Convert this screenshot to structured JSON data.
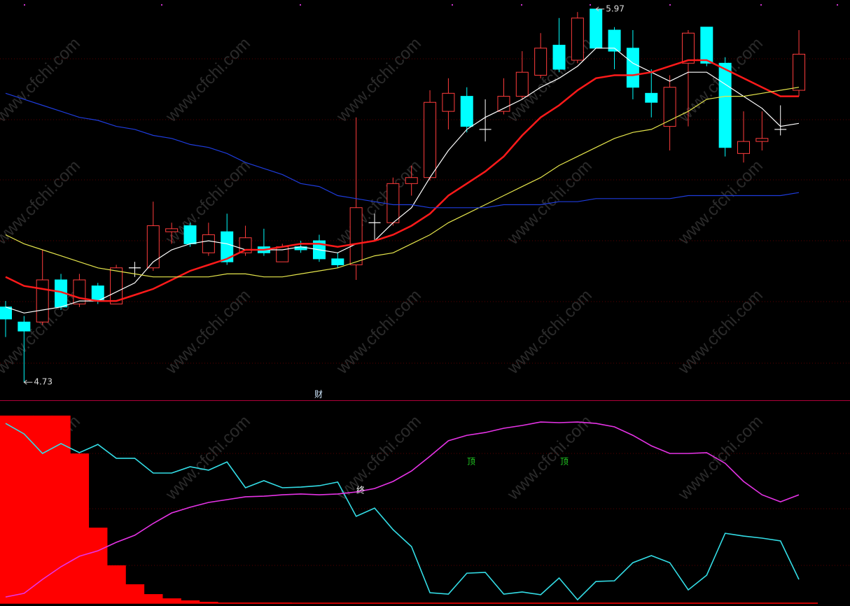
{
  "watermark": "www.cfchi.com",
  "chart_data": [
    {
      "type": "candlestick",
      "open": [
        4.98,
        4.93,
        4.93,
        5.07,
        4.99,
        5.05,
        4.99,
        5.11,
        5.11,
        5.23,
        5.25,
        5.16,
        5.23,
        5.16,
        5.18,
        5.13,
        5.18,
        5.2,
        5.14,
        5.12,
        5.26,
        5.26,
        5.39,
        5.41,
        5.63,
        5.68,
        5.57,
        5.63,
        5.68,
        5.75,
        5.85,
        5.8,
        5.97,
        5.9,
        5.84,
        5.69,
        5.58,
        5.79,
        5.91,
        5.79,
        5.49,
        5.53,
        5.57,
        5.7
      ],
      "high": [
        5.0,
        4.95,
        5.17,
        5.09,
        5.09,
        5.06,
        5.12,
        5.13,
        5.33,
        5.26,
        5.26,
        5.26,
        5.29,
        5.25,
        5.24,
        5.19,
        5.2,
        5.22,
        5.16,
        5.61,
        5.29,
        5.41,
        5.45,
        5.7,
        5.74,
        5.71,
        5.67,
        5.74,
        5.83,
        5.89,
        5.94,
        5.96,
        5.97,
        5.91,
        5.9,
        5.77,
        5.75,
        5.9,
        5.91,
        5.81,
        5.63,
        5.63,
        5.65,
        5.9
      ],
      "low": [
        4.88,
        4.73,
        4.92,
        4.97,
        4.98,
        4.99,
        4.99,
        5.08,
        5.1,
        5.19,
        5.18,
        5.15,
        5.12,
        5.15,
        5.15,
        5.13,
        5.16,
        5.13,
        5.11,
        5.07,
        5.2,
        5.25,
        5.35,
        5.4,
        5.57,
        5.56,
        5.53,
        5.62,
        5.67,
        5.74,
        5.76,
        5.79,
        5.84,
        5.77,
        5.67,
        5.61,
        5.5,
        5.58,
        5.78,
        5.48,
        5.46,
        5.5,
        5.55,
        5.68
      ],
      "close": [
        4.94,
        4.9,
        5.07,
        4.98,
        5.07,
        5.0,
        5.11,
        5.11,
        5.25,
        5.24,
        5.19,
        5.22,
        5.13,
        5.21,
        5.16,
        5.18,
        5.17,
        5.14,
        5.12,
        5.31,
        5.26,
        5.39,
        5.41,
        5.66,
        5.69,
        5.58,
        5.57,
        5.68,
        5.76,
        5.84,
        5.77,
        5.94,
        5.84,
        5.83,
        5.71,
        5.66,
        5.71,
        5.89,
        5.79,
        5.51,
        5.53,
        5.54,
        5.57,
        5.82
      ],
      "up_color": "#ff3c3c",
      "down_color": "#00ffff",
      "flat_color": "#ffffff",
      "series": [
        {
          "color": "#ffffff",
          "values": [
            4.98,
            4.96,
            4.97,
            4.98,
            5.0,
            5.0,
            5.03,
            5.06,
            5.13,
            5.17,
            5.19,
            5.2,
            5.19,
            5.17,
            5.17,
            5.17,
            5.18,
            5.17,
            5.16,
            5.19,
            5.2,
            5.26,
            5.31,
            5.41,
            5.5,
            5.57,
            5.61,
            5.64,
            5.67,
            5.71,
            5.74,
            5.78,
            5.84,
            5.84,
            5.79,
            5.76,
            5.73,
            5.76,
            5.76,
            5.72,
            5.68,
            5.64,
            5.58,
            5.59
          ]
        },
        {
          "color": "#ff1a1a",
          "values": [
            5.08,
            5.05,
            5.04,
            5.03,
            5.01,
            5.0,
            5.0,
            5.02,
            5.04,
            5.07,
            5.1,
            5.12,
            5.14,
            5.17,
            5.17,
            5.18,
            5.19,
            5.19,
            5.18,
            5.19,
            5.2,
            5.22,
            5.25,
            5.29,
            5.35,
            5.39,
            5.43,
            5.48,
            5.55,
            5.61,
            5.65,
            5.7,
            5.74,
            5.75,
            5.75,
            5.76,
            5.78,
            5.8,
            5.8,
            5.77,
            5.74,
            5.71,
            5.68,
            5.68
          ]
        },
        {
          "color": "#e6e64c",
          "values": [
            5.22,
            5.19,
            5.17,
            5.15,
            5.13,
            5.11,
            5.1,
            5.09,
            5.08,
            5.08,
            5.08,
            5.08,
            5.09,
            5.09,
            5.08,
            5.08,
            5.09,
            5.1,
            5.11,
            5.13,
            5.15,
            5.16,
            5.19,
            5.22,
            5.26,
            5.29,
            5.32,
            5.35,
            5.38,
            5.41,
            5.45,
            5.48,
            5.51,
            5.54,
            5.56,
            5.57,
            5.6,
            5.63,
            5.67,
            5.68,
            5.68,
            5.69,
            5.7,
            5.71
          ]
        },
        {
          "color": "#1e3cdc",
          "values": [
            5.69,
            5.67,
            5.65,
            5.63,
            5.61,
            5.6,
            5.58,
            5.57,
            5.55,
            5.54,
            5.52,
            5.51,
            5.49,
            5.46,
            5.44,
            5.42,
            5.39,
            5.38,
            5.35,
            5.34,
            5.33,
            5.32,
            5.32,
            5.31,
            5.31,
            5.31,
            5.31,
            5.32,
            5.32,
            5.32,
            5.33,
            5.33,
            5.34,
            5.34,
            5.34,
            5.34,
            5.34,
            5.35,
            5.35,
            5.35,
            5.35,
            5.35,
            5.35,
            5.36
          ]
        }
      ],
      "ylim": [
        4.67,
        6.0
      ],
      "extremes": {
        "high": 5.97,
        "low": 4.73
      },
      "annotations": [
        "财"
      ]
    },
    {
      "type": "indicator",
      "series": [
        {
          "type": "bar",
          "color": "#ff0000",
          "values": [
            93.1,
            93.1,
            93.1,
            93.1,
            74.3,
            37.5,
            18.8,
            9.4,
            4.5,
            2.4,
            1.4,
            0.7,
            0.3,
            0.3,
            0.3,
            0.3,
            0,
            0,
            0,
            0,
            0,
            0,
            0,
            0,
            0,
            0,
            0,
            0,
            0,
            0,
            0,
            0,
            0,
            0,
            0,
            0,
            0,
            0,
            0,
            0,
            0,
            0,
            0,
            0
          ]
        },
        {
          "type": "line",
          "color": "#33dde6",
          "values": [
            89.2,
            84.0,
            74.3,
            79.2,
            74.7,
            78.8,
            71.9,
            71.9,
            64.6,
            64.6,
            67.7,
            66.0,
            70.1,
            57.3,
            60.8,
            57.3,
            57.6,
            58.3,
            60.1,
            43.1,
            47.2,
            36.5,
            28.1,
            5.2,
            4.5,
            14.9,
            15.3,
            4.5,
            5.6,
            4.2,
            12.5,
            1.7,
            10.8,
            11.1,
            20.1,
            23.6,
            20.1,
            6.6,
            13.9,
            34.7,
            33.3,
            32.3,
            30.9,
            11.8
          ]
        },
        {
          "type": "line",
          "color": "#e633e6",
          "values": [
            3.1,
            4.9,
            11.8,
            18.1,
            23.3,
            26.0,
            30.2,
            33.7,
            39.6,
            44.8,
            47.6,
            50.0,
            51.4,
            52.8,
            53.1,
            53.8,
            54.2,
            53.8,
            54.2,
            55.2,
            56.9,
            60.4,
            65.6,
            72.9,
            80.6,
            83.3,
            84.7,
            86.8,
            88.2,
            89.9,
            89.6,
            89.9,
            89.2,
            87.5,
            83.3,
            78.1,
            74.3,
            74.3,
            74.7,
            69.4,
            60.4,
            53.8,
            50.3,
            53.8
          ]
        }
      ],
      "ylim": [
        0,
        100
      ],
      "annotations": [
        "终",
        "顶",
        "顶"
      ]
    }
  ]
}
